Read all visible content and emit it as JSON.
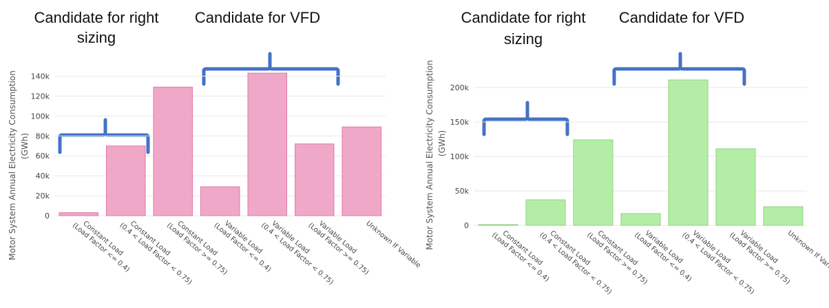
{
  "colors": {
    "brace": "#4472c4",
    "grid": "#e6e6e6",
    "left_fill": "#f0a8c8",
    "left_stroke": "#e07aa6",
    "right_fill": "#b4eea6",
    "right_stroke": "#8fd27f"
  },
  "annotations": {
    "right_sizing": [
      "Candidate for right",
      "sizing"
    ],
    "vfd": "Candidate for VFD"
  },
  "chart_data": [
    {
      "type": "bar",
      "ylabel": [
        "Motor System Annual Electricity Consumption",
        "(GWh)"
      ],
      "ylim": [
        0,
        150000
      ],
      "yticks": [
        0,
        20000,
        40000,
        60000,
        80000,
        100000,
        120000,
        140000
      ],
      "ytick_labels": [
        "0",
        "20k",
        "40k",
        "60k",
        "80k",
        "100k",
        "120k",
        "140k"
      ],
      "grid": true,
      "categories": [
        [
          "Constant Load",
          "(Load Factor <= 0.4)"
        ],
        [
          "Constant Load",
          "(0.4 < Load Factor < 0.75)"
        ],
        [
          "Constant Load",
          "(Load Factor >= 0.75)"
        ],
        [
          "Variable Load",
          "(Load Factor <= 0.4)"
        ],
        [
          "Variable Load",
          "(0.4 < Load Factor < 0.75)"
        ],
        [
          "Variable Load",
          "(Load Factor >= 0.75)"
        ],
        [
          "Unknown If Variable"
        ]
      ],
      "values": [
        3000,
        70000,
        129000,
        29000,
        143000,
        72000,
        89000
      ]
    },
    {
      "type": "bar",
      "ylabel": [
        "Motor System Annual Electricity Consumption",
        "(GWh)"
      ],
      "ylim": [
        0,
        230000
      ],
      "yticks": [
        0,
        50000,
        100000,
        150000,
        200000
      ],
      "ytick_labels": [
        "0",
        "50k",
        "100k",
        "150k",
        "200k"
      ],
      "grid": true,
      "categories": [
        [
          "Constant Load",
          "(Load Factor <= 0.4)"
        ],
        [
          "Constant Load",
          "(0.4 < Load Factor < 0.75)"
        ],
        [
          "Constant Load",
          "(Load Factor >= 0.75)"
        ],
        [
          "Variable Load",
          "(Load Factor <= 0.4)"
        ],
        [
          "Variable Load",
          "(0.4 < Load Factor < 0.75)"
        ],
        [
          "Variable Load",
          "(Load Factor >= 0.75)"
        ],
        [
          "Unknown If Variable"
        ]
      ],
      "values": [
        1000,
        37000,
        124000,
        17000,
        211000,
        111000,
        27000
      ]
    }
  ]
}
